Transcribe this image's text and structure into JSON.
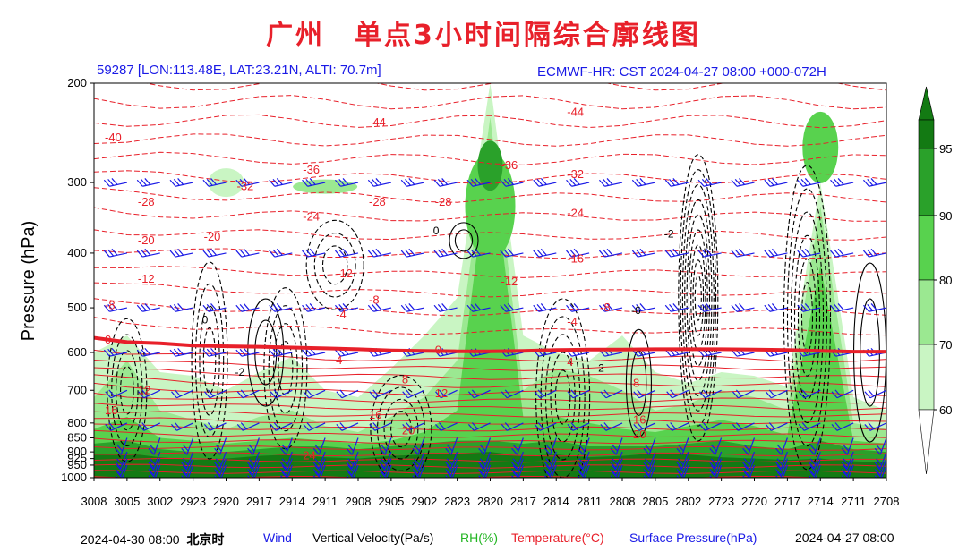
{
  "title": "广州　单点3小时间隔综合廓线图",
  "station_info": "59287 [LON:113.48E, LAT:23.21N, ALTI: 70.7m]",
  "model_info": "ECMWF-HR: CST 2024-04-27 08:00 +000-072H",
  "footer": {
    "start_time": "2024-04-30 08:00",
    "time_zone": "北京时",
    "end_time": "2024-04-27 08:00"
  },
  "legend": [
    {
      "label": "Wind",
      "color": "#1a1ae6"
    },
    {
      "label": "Vertical Velocity(Pa/s)",
      "color": "#000000"
    },
    {
      "label": "RH(%)",
      "color": "#22b522"
    },
    {
      "label": "Temperature(°C)",
      "color": "#e8202a"
    },
    {
      "label": "Surface Pressure(hPa)",
      "color": "#1a1ae6"
    }
  ],
  "colors": {
    "temperature": "#e8202a",
    "wind": "#1a1ae6",
    "rh_60": "#c9f5c3",
    "rh_70": "#9be891",
    "rh_80": "#58d24e",
    "rh_90": "#2aa12a",
    "rh_95": "#137a13"
  },
  "chart_data": {
    "type": "heatmap",
    "xlabel": "",
    "ylabel": "Pressure (hPa)",
    "y_scale": "pressure (log-like), inverted",
    "ylim": [
      1000,
      200
    ],
    "y_ticks": [
      200,
      300,
      400,
      500,
      600,
      700,
      800,
      850,
      900,
      925,
      950,
      1000
    ],
    "x_ticks": [
      "3008",
      "3005",
      "3002",
      "2923",
      "2920",
      "2917",
      "2914",
      "2911",
      "2908",
      "2905",
      "2902",
      "2823",
      "2820",
      "2817",
      "2814",
      "2811",
      "2808",
      "2805",
      "2802",
      "2723",
      "2720",
      "2717",
      "2714",
      "2711",
      "2708"
    ],
    "colorbar": {
      "label": "RH(%)",
      "ticks": [
        60,
        70,
        80,
        90,
        95
      ]
    },
    "zero_isotherm_hPa": [
      565,
      575,
      578,
      583,
      585,
      586,
      588,
      590,
      592,
      595,
      596,
      597,
      597,
      596,
      594,
      593,
      593,
      592,
      592,
      592,
      593,
      594,
      596,
      598,
      598
    ],
    "temperature_labels": [
      {
        "text": "-40",
        "x": "3008",
        "p": 250
      },
      {
        "text": "-44",
        "x": "2908",
        "p": 235
      },
      {
        "text": "-44",
        "x": "2814",
        "p": 225
      },
      {
        "text": "-36",
        "x": "2914",
        "p": 285
      },
      {
        "text": "-36",
        "x": "2820",
        "p": 280
      },
      {
        "text": "-32",
        "x": "2920",
        "p": 305
      },
      {
        "text": "-32",
        "x": "2814",
        "p": 290
      },
      {
        "text": "-28",
        "x": "3005",
        "p": 325
      },
      {
        "text": "-28",
        "x": "2908",
        "p": 325
      },
      {
        "text": "-28",
        "x": "2902",
        "p": 325
      },
      {
        "text": "-24",
        "x": "2914",
        "p": 345
      },
      {
        "text": "-24",
        "x": "2814",
        "p": 340
      },
      {
        "text": "-20",
        "x": "3005",
        "p": 380
      },
      {
        "text": "-20",
        "x": "2923",
        "p": 375
      },
      {
        "text": "-16",
        "x": "2814",
        "p": 410
      },
      {
        "text": "-12",
        "x": "3005",
        "p": 445
      },
      {
        "text": "-12",
        "x": "2911",
        "p": 435
      },
      {
        "text": "-12",
        "x": "2820",
        "p": 450
      },
      {
        "text": "-8",
        "x": "3008",
        "p": 495
      },
      {
        "text": "-8",
        "x": "2908",
        "p": 485
      },
      {
        "text": "-8",
        "x": "2811",
        "p": 500
      },
      {
        "text": "-4",
        "x": "2911",
        "p": 515
      },
      {
        "text": "-4",
        "x": "2814",
        "p": 530
      },
      {
        "text": "0",
        "x": "3008",
        "p": 570
      },
      {
        "text": "0",
        "x": "2902",
        "p": 595
      },
      {
        "text": "4",
        "x": "2911",
        "p": 620
      },
      {
        "text": "4",
        "x": "2814",
        "p": 625
      },
      {
        "text": "8",
        "x": "2905",
        "p": 670
      },
      {
        "text": "8",
        "x": "2808",
        "p": 680
      },
      {
        "text": "12",
        "x": "3005",
        "p": 700
      },
      {
        "text": "12",
        "x": "2902",
        "p": 710
      },
      {
        "text": "16",
        "x": "3008",
        "p": 760
      },
      {
        "text": "16",
        "x": "2908",
        "p": 775
      },
      {
        "text": "16",
        "x": "2808",
        "p": 790
      },
      {
        "text": "20",
        "x": "2905",
        "p": 825
      },
      {
        "text": "20",
        "x": "2808",
        "p": 840
      },
      {
        "text": "24",
        "x": "2914",
        "p": 915
      }
    ],
    "vertical_velocity_labels": [
      {
        "text": "0",
        "x": "2923",
        "p": 525
      },
      {
        "text": "-2",
        "x": "2920",
        "p": 650
      },
      {
        "text": "2",
        "x": "2811",
        "p": 640
      },
      {
        "text": "0",
        "x": "2902",
        "p": 365
      },
      {
        "text": "-2",
        "x": "2805",
        "p": 370
      },
      {
        "text": "-6",
        "x": "2808",
        "p": 505
      }
    ]
  }
}
